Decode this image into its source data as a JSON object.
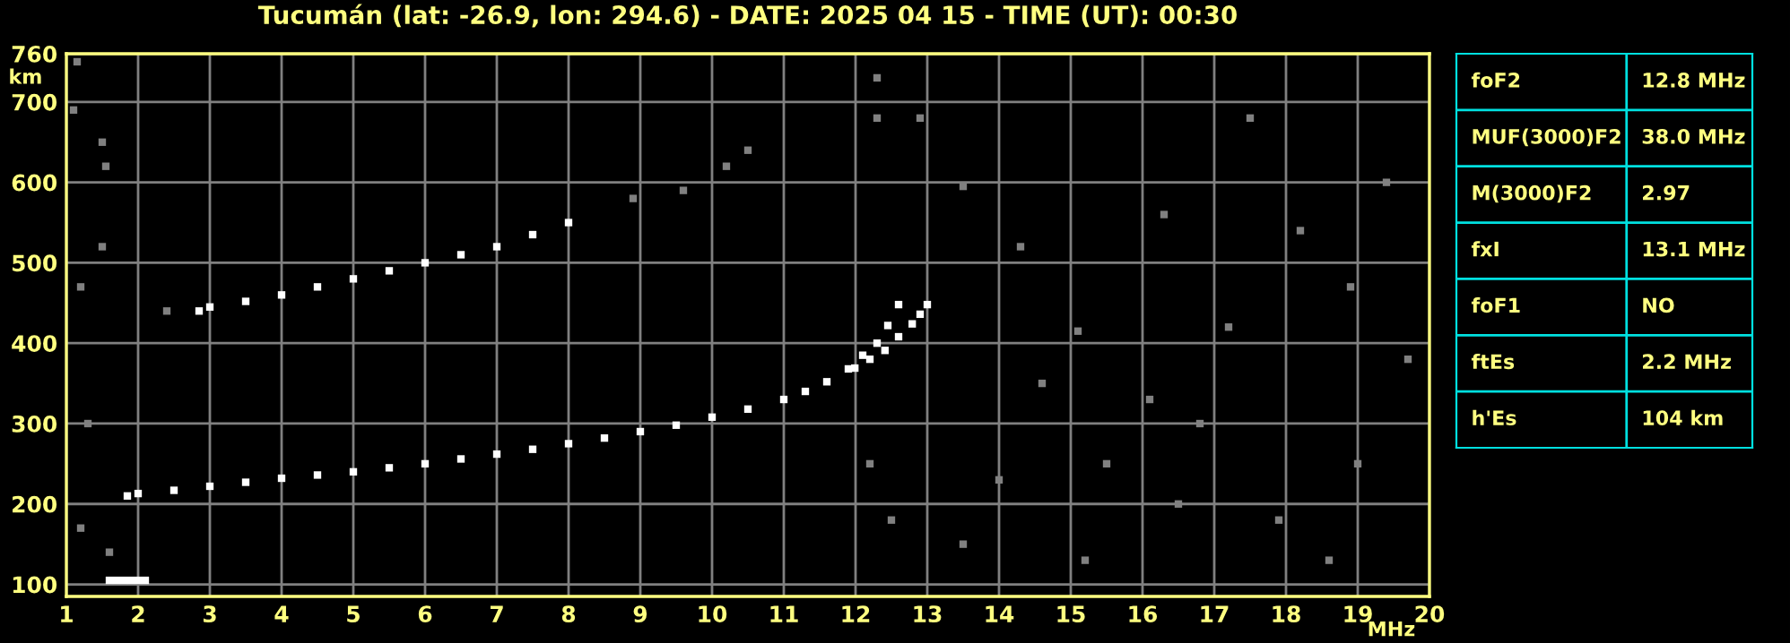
{
  "chart_data": [
    {
      "type": "scatter",
      "title": "Tucumán (lat: -26.9, lon: 294.6) - DATE: 2025 04 15 - TIME (UT): 00:30",
      "xlabel": "MHz",
      "ylabel": "km",
      "xlim": [
        1,
        20
      ],
      "ylim": [
        85,
        760
      ],
      "xticks": [
        1,
        2,
        3,
        4,
        5,
        6,
        7,
        8,
        9,
        10,
        11,
        12,
        13,
        14,
        15,
        16,
        17,
        18,
        19,
        20
      ],
      "yticks": [
        100,
        200,
        300,
        400,
        500,
        600,
        700,
        760
      ],
      "grid": true,
      "marker": "square",
      "series": [
        {
          "color": "#ffffff",
          "x": [
            1.85,
            2.0,
            2.5,
            3.0,
            3.5,
            4.0,
            4.5,
            5.0,
            5.5,
            6.0,
            6.5,
            7.0,
            7.5,
            8.0,
            8.5,
            9.0,
            9.5,
            10.0,
            10.5,
            11.0,
            11.3,
            11.6,
            11.9,
            12.1,
            12.3,
            12.45,
            12.6
          ],
          "values": [
            210,
            213,
            217,
            222,
            227,
            232,
            236,
            240,
            245,
            250,
            256,
            262,
            268,
            275,
            282,
            290,
            298,
            308,
            318,
            330,
            340,
            352,
            368,
            385,
            400,
            422,
            448
          ]
        },
        {
          "color": "#ffffff",
          "x": [
            11.99,
            12.2,
            12.41,
            12.6,
            12.79,
            12.9,
            13.0
          ],
          "values": [
            369,
            380,
            391,
            408,
            424,
            436,
            448
          ]
        },
        {
          "color": "#ffffff",
          "x": [
            2.85,
            3.0,
            3.5,
            4.0,
            4.5,
            5.0,
            5.5,
            6.0,
            6.5,
            7.0,
            7.5,
            8.0
          ],
          "values": [
            440,
            445,
            452,
            460,
            470,
            480,
            490,
            500,
            510,
            520,
            535,
            550
          ]
        },
        {
          "color": "#ffffff",
          "x": [
            1.6,
            1.7,
            1.8,
            1.9,
            2.0,
            2.1
          ],
          "values": [
            105,
            105,
            105,
            105,
            105,
            105
          ]
        },
        {
          "color": "#808080",
          "x": [
            1.15,
            1.1,
            1.5,
            1.55,
            1.5,
            1.2,
            2.4,
            8.9,
            9.6,
            10.2,
            10.5,
            12.3,
            12.3,
            12.9,
            13.5,
            14.3,
            15.1,
            16.3,
            17.5,
            18.2,
            19.4,
            14.6,
            15.5,
            16.8,
            17.9,
            18.6,
            13.5,
            15.2,
            19.0,
            14.0,
            16.1,
            17.2,
            18.9,
            1.3,
            1.2,
            1.6,
            12.2,
            12.5,
            19.7,
            16.5
          ],
          "values": [
            750,
            690,
            650,
            620,
            520,
            470,
            440,
            580,
            590,
            620,
            640,
            730,
            680,
            680,
            595,
            520,
            415,
            560,
            680,
            540,
            600,
            350,
            250,
            300,
            180,
            130,
            150,
            130,
            250,
            230,
            330,
            420,
            470,
            300,
            170,
            140,
            250,
            180,
            380,
            200
          ]
        }
      ]
    },
    {
      "type": "other",
      "annotations": [
        "foF2",
        "12.8 MHz",
        "MUF(3000)F2",
        "38.0 MHz",
        "M(3000)F2",
        "2.97",
        "fxI",
        "13.1 MHz",
        "foF1",
        "NO",
        "ftEs",
        "2.2 MHz",
        "h'Es",
        "104 km"
      ]
    }
  ]
}
